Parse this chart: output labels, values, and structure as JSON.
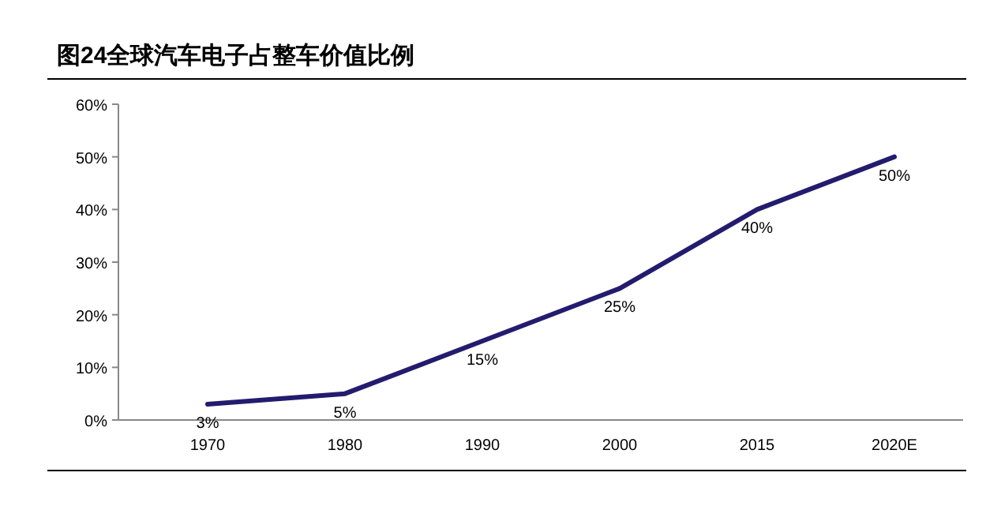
{
  "chart_data": {
    "type": "line",
    "title": "图24全球汽车电子占整车价值比例",
    "categories": [
      "1970",
      "1980",
      "1990",
      "2000",
      "2015",
      "2020E"
    ],
    "series": [
      {
        "color": "#231c6e",
        "values": [
          3,
          5,
          15,
          25,
          40,
          50
        ],
        "value_labels": [
          "3%",
          "5%",
          "15%",
          "25%",
          "40%",
          "50%"
        ]
      }
    ],
    "ylim": [
      0,
      60
    ],
    "yticks": [
      {
        "value": 0,
        "label": "0%"
      },
      {
        "value": 10,
        "label": "10%"
      },
      {
        "value": 20,
        "label": "20%"
      },
      {
        "value": 30,
        "label": "30%"
      },
      {
        "value": 40,
        "label": "40%"
      },
      {
        "value": 50,
        "label": "50%"
      },
      {
        "value": 60,
        "label": "60%"
      }
    ],
    "grid": false,
    "marker": "none",
    "line_style": "solid"
  }
}
